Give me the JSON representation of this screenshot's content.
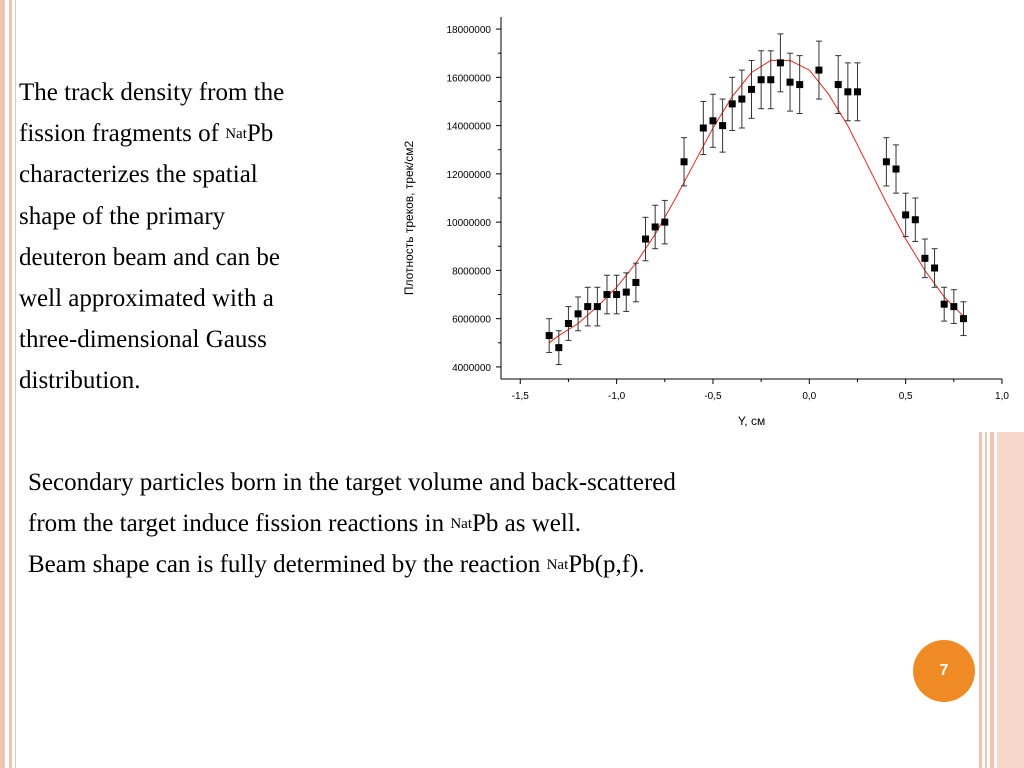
{
  "intro": {
    "line1": "The track density from the",
    "line2_pre": "fission fragments of ",
    "line2_sup": "Nat",
    "line2_post": "Pb",
    "line3": "characterizes the spatial",
    "line4": "shape of the primary",
    "line5": "deuteron beam and can be",
    "line6": "well approximated  with a",
    "line7": "three-dimensional Gauss",
    "line8": "distribution."
  },
  "bottom": {
    "line1": "Secondary particles born in the target volume and back-scattered",
    "line2_pre": "from the target induce fission reactions in ",
    "line2_sup": "Nat",
    "line2_post": "Pb as well.",
    "line3_pre": "Beam shape can is fully determined by the reaction ",
    "line3_sup": "Nat",
    "line3_post": "Pb(p,f)."
  },
  "slide_number": "7",
  "chart_data": {
    "type": "scatter",
    "xlabel": "Y, см",
    "ylabel": "Плотность треков, трек/см2",
    "xlim": [
      -1.6,
      1.0
    ],
    "ylim": [
      3500000,
      18500000
    ],
    "xticks": [
      -1.5,
      -1.0,
      -0.5,
      0.0,
      0.5,
      1.0
    ],
    "xtick_labels": [
      "-1,5",
      "-1,0",
      "-0,5",
      "0,0",
      "0,5",
      "1,0"
    ],
    "yticks": [
      4000000,
      6000000,
      8000000,
      10000000,
      12000000,
      14000000,
      16000000,
      18000000
    ],
    "ytick_labels": [
      "4000000",
      "6000000",
      "8000000",
      "10000000",
      "12000000",
      "14000000",
      "16000000",
      "18000000"
    ],
    "series": [
      {
        "kind": "points_with_error_bars",
        "color": "#000000",
        "x": [
          -1.35,
          -1.3,
          -1.25,
          -1.2,
          -1.15,
          -1.1,
          -1.05,
          -1.0,
          -0.95,
          -0.9,
          -0.85,
          -0.8,
          -0.75,
          -0.65,
          -0.55,
          -0.5,
          -0.45,
          -0.4,
          -0.35,
          -0.3,
          -0.25,
          -0.2,
          -0.15,
          -0.1,
          -0.05,
          0.05,
          0.15,
          0.2,
          0.25,
          0.4,
          0.45,
          0.5,
          0.55,
          0.6,
          0.65,
          0.7,
          0.75,
          0.8
        ],
        "y": [
          5300000,
          4800000,
          5800000,
          6200000,
          6500000,
          6500000,
          7000000,
          7000000,
          7100000,
          7500000,
          9300000,
          9800000,
          10000000,
          12500000,
          13900000,
          14200000,
          14000000,
          14900000,
          15100000,
          15500000,
          15900000,
          15900000,
          16600000,
          15800000,
          15700000,
          16300000,
          15700000,
          15400000,
          15400000,
          12500000,
          12200000,
          10300000,
          10100000,
          8500000,
          8100000,
          6600000,
          6500000,
          6000000
        ],
        "err": [
          700000,
          700000,
          700000,
          700000,
          800000,
          800000,
          800000,
          800000,
          800000,
          800000,
          900000,
          900000,
          900000,
          1000000,
          1100000,
          1100000,
          1100000,
          1100000,
          1200000,
          1200000,
          1200000,
          1200000,
          1200000,
          1200000,
          1200000,
          1200000,
          1200000,
          1200000,
          1200000,
          1000000,
          1000000,
          900000,
          900000,
          800000,
          800000,
          700000,
          700000,
          700000
        ]
      },
      {
        "kind": "fit_curve",
        "color": "#e8261a",
        "x": [
          -1.35,
          -1.3,
          -1.2,
          -1.1,
          -1.0,
          -0.9,
          -0.8,
          -0.7,
          -0.6,
          -0.5,
          -0.4,
          -0.3,
          -0.2,
          -0.1,
          0.0,
          0.1,
          0.2,
          0.3,
          0.4,
          0.5,
          0.6,
          0.7,
          0.8
        ],
        "y": [
          5000000,
          5300000,
          5800000,
          6500000,
          7300000,
          8300000,
          9500000,
          10900000,
          12400000,
          13900000,
          15200000,
          16200000,
          16700000,
          16700000,
          16300000,
          15300000,
          14000000,
          12400000,
          10800000,
          9300000,
          8000000,
          6900000,
          6100000
        ]
      }
    ]
  }
}
